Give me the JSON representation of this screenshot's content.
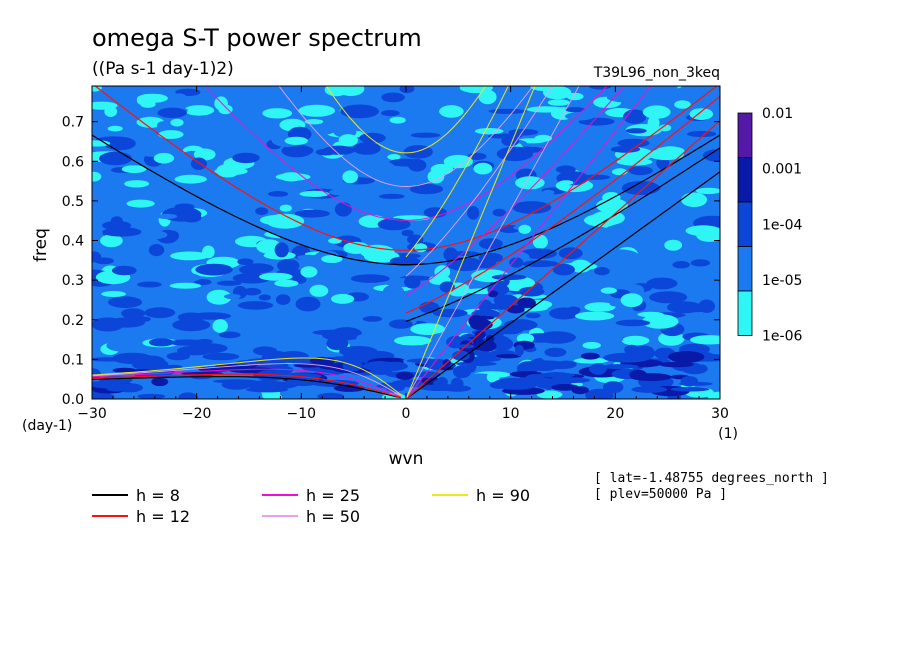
{
  "chart_data": {
    "type": "heatmap",
    "title": "omega S-T power spectrum",
    "subtitle": "((Pa s-1 day-1)2)",
    "run_label": "T39L96_non_3keq",
    "xlabel": "wvn",
    "ylabel": "freq",
    "x_unit": "(1)",
    "y_unit": "(day-1)",
    "xlim": [
      -30,
      30
    ],
    "ylim": [
      0,
      0.79
    ],
    "x_ticks": [
      -30,
      -20,
      -10,
      0,
      10,
      20,
      30
    ],
    "x_tick_labels": [
      "−30",
      "−20",
      "−10",
      "0",
      "10",
      "20",
      "30"
    ],
    "y_ticks": [
      0.0,
      0.1,
      0.2,
      0.3,
      0.4,
      0.5,
      0.6,
      0.7
    ],
    "y_tick_labels": [
      "0.0",
      "0.1",
      "0.2",
      "0.3",
      "0.4",
      "0.5",
      "0.6",
      "0.7"
    ],
    "colorbar": {
      "labels": [
        "0.01",
        "0.001",
        "1e-04",
        "1e-05",
        "1e-06"
      ],
      "colors": [
        "#5519a8",
        "#0a1aa8",
        "#0c46d8",
        "#1c7af0",
        "#30f5f5"
      ]
    },
    "dispersion_curves": [
      {
        "label": "h =  8",
        "h": 8,
        "color": "#000000"
      },
      {
        "label": "h = 12",
        "h": 12,
        "color": "#ff1010"
      },
      {
        "label": "h = 25",
        "h": 25,
        "color": "#ee10d0"
      },
      {
        "label": "h = 50",
        "h": 50,
        "color": "#e8a0e8"
      },
      {
        "label": "h = 90",
        "h": 90,
        "color": "#e8e820"
      }
    ],
    "notes": [
      "[ lat=-1.48755 degrees_north ]",
      "[ plev=50000 Pa ]"
    ]
  }
}
